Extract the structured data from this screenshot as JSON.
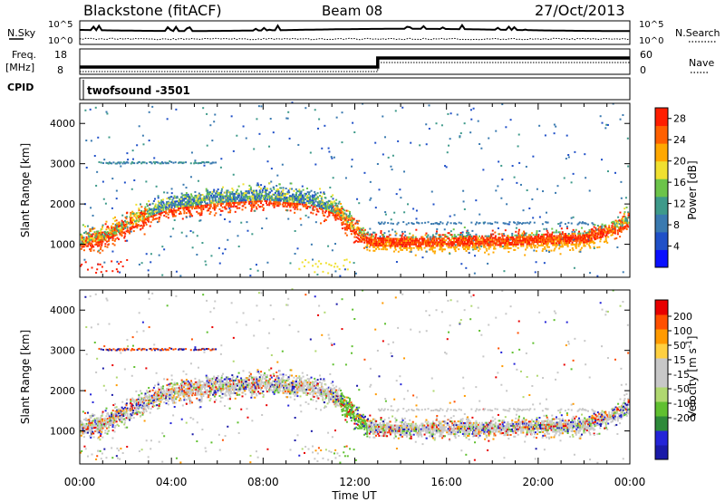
{
  "header": {
    "site": "Blackstone (fitACF)",
    "beam": "Beam 08",
    "date": "27/Oct/2013"
  },
  "noise_panel": {
    "left_label": "N.Sky",
    "right_label": "N.Search",
    "left_ticks": [
      "10^5",
      "10^0"
    ],
    "right_ticks": [
      "10^5",
      "10^0"
    ]
  },
  "freq_panel": {
    "left_label_1": "Freq.",
    "left_label_2": "[MHz]",
    "left_ticks": [
      "18",
      "8"
    ],
    "right_label": "Nave",
    "right_ticks": [
      "60",
      "0"
    ],
    "cpid_label": "CPID",
    "cpid_value": "twofsound -3501"
  },
  "chart_data": [
    {
      "type": "heatmap",
      "name": "power",
      "ylabel": "Slant Range [km]",
      "xlabel": "Time UT",
      "ylim": [
        180,
        4500
      ],
      "xlim": [
        0,
        24
      ],
      "yticks": [
        "1000",
        "2000",
        "3000",
        "4000"
      ],
      "xticks": [
        "00:00",
        "04:00",
        "08:00",
        "12:00",
        "16:00",
        "20:00",
        "00:00"
      ],
      "colorbar_label": "Power [dB]",
      "colorbar_ticks": [
        "4",
        "8",
        "12",
        "16",
        "20",
        "24",
        "28"
      ],
      "colorbar_range": [
        0,
        30
      ],
      "colors": [
        "#0a10ff",
        "#2050c8",
        "#3a7ab0",
        "#3e9a8a",
        "#6cc44a",
        "#f0e030",
        "#ffa800",
        "#ff6000",
        "#ff1e00"
      ],
      "band_trace": [
        {
          "t": 0.0,
          "r": 1050
        },
        {
          "t": 1.0,
          "r": 1150
        },
        {
          "t": 2.0,
          "r": 1450
        },
        {
          "t": 3.0,
          "r": 1750
        },
        {
          "t": 4.0,
          "r": 1950
        },
        {
          "t": 6.0,
          "r": 2080
        },
        {
          "t": 8.0,
          "r": 2150
        },
        {
          "t": 10.0,
          "r": 2050
        },
        {
          "t": 11.2,
          "r": 1800
        },
        {
          "t": 12.0,
          "r": 1350
        },
        {
          "t": 12.6,
          "r": 1050
        },
        {
          "t": 14.0,
          "r": 1020
        },
        {
          "t": 18.0,
          "r": 1050
        },
        {
          "t": 22.0,
          "r": 1120
        },
        {
          "t": 23.0,
          "r": 1300
        },
        {
          "t": 24.0,
          "r": 1600
        }
      ]
    },
    {
      "type": "heatmap",
      "name": "velocity",
      "ylabel": "Slant Range [km]",
      "xlabel": "Time UT",
      "ylim": [
        180,
        4500
      ],
      "xlim": [
        0,
        24
      ],
      "yticks": [
        "1000",
        "2000",
        "3000",
        "4000"
      ],
      "xticks": [
        "00:00",
        "04:00",
        "08:00",
        "12:00",
        "16:00",
        "20:00",
        "00:00"
      ],
      "colorbar_label": "Velocity [m s^-1]",
      "colorbar_ticks": [
        "200",
        "100",
        "50",
        "15",
        "-15",
        "-50",
        "-100",
        "-200"
      ],
      "colors": [
        "#1a1aa8",
        "#2424d8",
        "#2e8a3a",
        "#60c030",
        "#b0d870",
        "#c8c8c8",
        "#c8c8c8",
        "#ffd040",
        "#ff9a00",
        "#ff5000",
        "#e80000"
      ]
    }
  ]
}
